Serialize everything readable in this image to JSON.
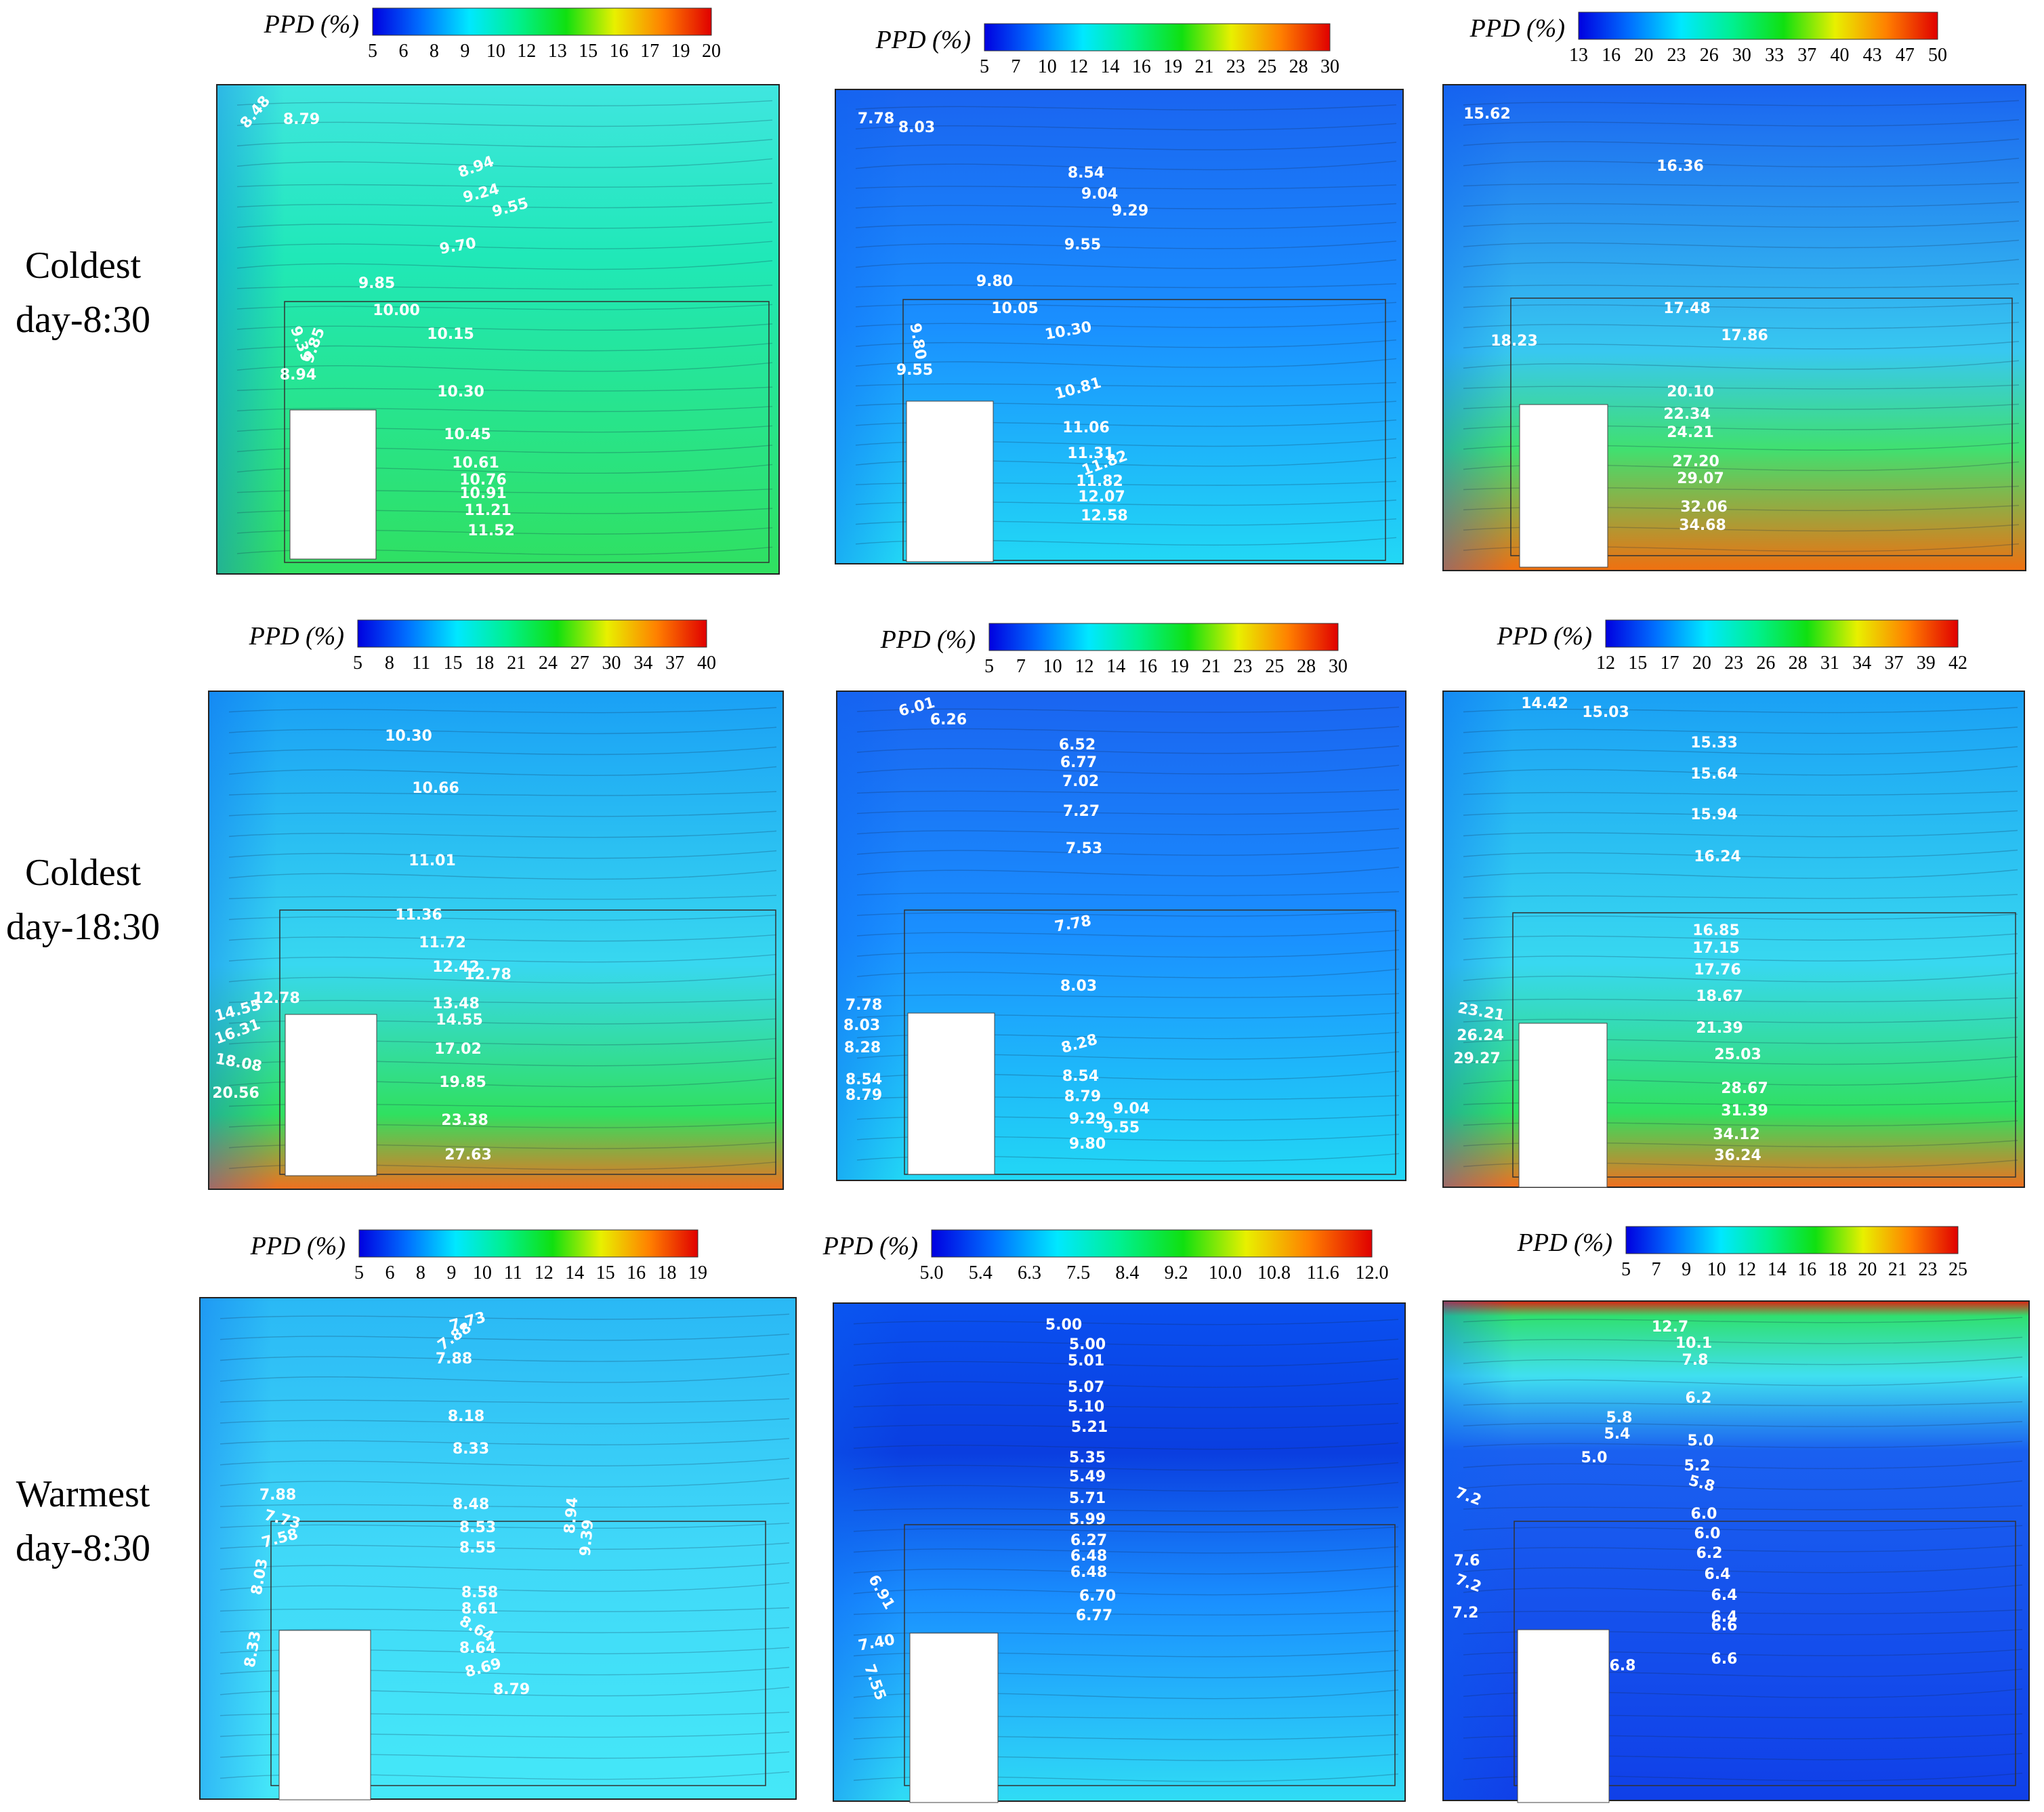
{
  "figure": {
    "legend_title": "PPD (%)",
    "colormap": [
      "#0000e0",
      "#0070ff",
      "#00e8ff",
      "#00f090",
      "#10e010",
      "#e8f000",
      "#ff8000",
      "#e00000"
    ]
  },
  "rows": [
    {
      "label_line1": "Coldest",
      "label_line2": "day-8:30"
    },
    {
      "label_line1": "Coldest",
      "label_line2": "day-18:30"
    },
    {
      "label_line1": "Warmest",
      "label_line2": "day-8:30"
    }
  ],
  "panels": [
    {
      "id": "r1c1",
      "ticks": [
        "5",
        "6",
        "8",
        "9",
        "10",
        "12",
        "13",
        "15",
        "16",
        "17",
        "19",
        "20"
      ],
      "range": [
        5,
        20
      ],
      "labels": [
        [
          "8.48",
          "-50"
        ],
        [
          "8.79"
        ],
        [
          "8.94",
          "-20"
        ],
        [
          "9.24",
          "-15"
        ],
        [
          "9.55",
          "-15"
        ],
        [
          "9.70",
          "-10"
        ],
        [
          "9.85"
        ],
        [
          "10.00"
        ],
        [
          "9.39",
          "70"
        ],
        [
          "9.85",
          "-70"
        ],
        [
          "8.94"
        ],
        [
          "10.15"
        ],
        [
          "10.30"
        ],
        [
          "10.45"
        ],
        [
          "10.61"
        ],
        [
          "10.76"
        ],
        [
          "10.91"
        ],
        [
          "11.21"
        ],
        [
          "11.52"
        ]
      ]
    },
    {
      "id": "r1c2",
      "ticks": [
        "5",
        "7",
        "10",
        "12",
        "14",
        "16",
        "19",
        "21",
        "23",
        "25",
        "28",
        "30"
      ],
      "range": [
        5,
        30
      ],
      "labels": [
        [
          "7.78"
        ],
        [
          "8.03"
        ],
        [
          "8.54"
        ],
        [
          "9.04"
        ],
        [
          "9.29"
        ],
        [
          "9.55"
        ],
        [
          "9.80"
        ],
        [
          "10.05"
        ],
        [
          "10.30",
          "-10"
        ],
        [
          "9.80",
          "80"
        ],
        [
          "9.55"
        ],
        [
          "10.81",
          "-15"
        ],
        [
          "11.06"
        ],
        [
          "11.31"
        ],
        [
          "11.82",
          "-20"
        ],
        [
          "11.82"
        ],
        [
          "12.07"
        ],
        [
          "12.58"
        ]
      ]
    },
    {
      "id": "r1c3",
      "ticks": [
        "13",
        "16",
        "20",
        "23",
        "26",
        "30",
        "33",
        "37",
        "40",
        "43",
        "47",
        "50"
      ],
      "range": [
        13,
        50
      ],
      "labels": [
        [
          "15.62"
        ],
        [
          "16.36"
        ],
        [
          "17.48"
        ],
        [
          "18.23"
        ],
        [
          "17.86"
        ],
        [
          "20.10"
        ],
        [
          "22.34"
        ],
        [
          "24.21"
        ],
        [
          "27.20"
        ],
        [
          "29.07"
        ],
        [
          "32.06"
        ],
        [
          "34.68"
        ]
      ]
    },
    {
      "id": "r2c1",
      "ticks": [
        "5",
        "8",
        "11",
        "15",
        "18",
        "21",
        "24",
        "27",
        "30",
        "34",
        "37",
        "40"
      ],
      "range": [
        5,
        40
      ],
      "labels": [
        [
          "10.30"
        ],
        [
          "10.66"
        ],
        [
          "11.01"
        ],
        [
          "11.36"
        ],
        [
          "11.72"
        ],
        [
          "12.42"
        ],
        [
          "12.78"
        ],
        [
          "14.55",
          "-15"
        ],
        [
          "12.78"
        ],
        [
          "16.31",
          "-20"
        ],
        [
          "13.48"
        ],
        [
          "14.55"
        ],
        [
          "18.08",
          "10"
        ],
        [
          "17.02"
        ],
        [
          "20.56"
        ],
        [
          "19.85"
        ],
        [
          "23.38"
        ],
        [
          "27.63"
        ]
      ]
    },
    {
      "id": "r2c2",
      "ticks": [
        "5",
        "7",
        "10",
        "12",
        "14",
        "16",
        "19",
        "21",
        "23",
        "25",
        "28",
        "30"
      ],
      "range": [
        5,
        30
      ],
      "labels": [
        [
          "6.01",
          "-15"
        ],
        [
          "6.26"
        ],
        [
          "6.52"
        ],
        [
          "6.77"
        ],
        [
          "7.02"
        ],
        [
          "7.27"
        ],
        [
          "7.53"
        ],
        [
          "7.78",
          "-10"
        ],
        [
          "8.03"
        ],
        [
          "7.78"
        ],
        [
          "8.03"
        ],
        [
          "8.28"
        ],
        [
          "8.28",
          "-15"
        ],
        [
          "8.54"
        ],
        [
          "8.54"
        ],
        [
          "8.79"
        ],
        [
          "8.79"
        ],
        [
          "9.04"
        ],
        [
          "9.29"
        ],
        [
          "9.55"
        ],
        [
          "9.80"
        ]
      ]
    },
    {
      "id": "r2c3",
      "ticks": [
        "12",
        "15",
        "17",
        "20",
        "23",
        "26",
        "28",
        "31",
        "34",
        "37",
        "39",
        "42"
      ],
      "range": [
        12,
        42
      ],
      "labels": [
        [
          "14.42"
        ],
        [
          "15.03"
        ],
        [
          "15.33"
        ],
        [
          "15.64"
        ],
        [
          "15.94"
        ],
        [
          "16.24"
        ],
        [
          "16.85"
        ],
        [
          "17.15"
        ],
        [
          "17.76"
        ],
        [
          "18.67"
        ],
        [
          "21.39"
        ],
        [
          "23.21",
          "10"
        ],
        [
          "25.03"
        ],
        [
          "26.24"
        ],
        [
          "28.67"
        ],
        [
          "29.27"
        ],
        [
          "31.39"
        ],
        [
          "34.12"
        ],
        [
          "36.24"
        ]
      ]
    },
    {
      "id": "r3c1",
      "ticks": [
        "5",
        "6",
        "8",
        "9",
        "10",
        "11",
        "12",
        "14",
        "15",
        "16",
        "18",
        "19"
      ],
      "range": [
        5,
        19.8
      ],
      "labels": [
        [
          "7.73",
          "-15"
        ],
        [
          "7.88",
          "-35"
        ],
        [
          "7.88"
        ],
        [
          "8.18"
        ],
        [
          "8.33"
        ],
        [
          "7.88"
        ],
        [
          "8.48"
        ],
        [
          "7.73",
          "15"
        ],
        [
          "8.53"
        ],
        [
          "7.58",
          "-15"
        ],
        [
          "8.55"
        ],
        [
          "8.03",
          "-80"
        ],
        [
          "8.58"
        ],
        [
          "8.61"
        ],
        [
          "8.33",
          "-80"
        ],
        [
          "8.64",
          "30"
        ],
        [
          "8.64"
        ],
        [
          "8.69",
          "-15"
        ],
        [
          "8.79"
        ],
        [
          "8.94",
          "-85"
        ],
        [
          "9.39",
          "-85"
        ]
      ]
    },
    {
      "id": "r3c2",
      "ticks": [
        "5.0",
        "5.4",
        "6.3",
        "7.5",
        "8.4",
        "9.2",
        "10.0",
        "10.8",
        "11.6",
        "12.0"
      ],
      "range": [
        5,
        12
      ],
      "labels": [
        [
          "5.00"
        ],
        [
          "5.00"
        ],
        [
          "5.01"
        ],
        [
          "5.07"
        ],
        [
          "5.10"
        ],
        [
          "5.21"
        ],
        [
          "5.35"
        ],
        [
          "5.49"
        ],
        [
          "5.71"
        ],
        [
          "5.99"
        ],
        [
          "6.27"
        ],
        [
          "6.48"
        ],
        [
          "6.48"
        ],
        [
          "6.70"
        ],
        [
          "6.77"
        ],
        [
          "6.91",
          "60"
        ],
        [
          "7.40",
          "-10"
        ],
        [
          "7.55",
          "70"
        ]
      ]
    },
    {
      "id": "r3c3",
      "ticks": [
        "5",
        "7",
        "9",
        "10",
        "12",
        "14",
        "16",
        "18",
        "20",
        "21",
        "23",
        "25"
      ],
      "range": [
        5,
        25
      ],
      "labels": [
        [
          "12.7"
        ],
        [
          "10.1"
        ],
        [
          "7.8"
        ],
        [
          "6.2"
        ],
        [
          "5.8"
        ],
        [
          "5.4"
        ],
        [
          "5.0"
        ],
        [
          "5.0"
        ],
        [
          "5.2"
        ],
        [
          "5.8",
          "15"
        ],
        [
          "7.2",
          "20"
        ],
        [
          "6.0"
        ],
        [
          "6.0"
        ],
        [
          "6.2"
        ],
        [
          "7.6"
        ],
        [
          "6.4"
        ],
        [
          "7.2",
          "20"
        ],
        [
          "6.4"
        ],
        [
          "6.4"
        ],
        [
          "7.2"
        ],
        [
          "6.6"
        ],
        [
          "6.6"
        ],
        [
          "6.8"
        ]
      ]
    }
  ]
}
